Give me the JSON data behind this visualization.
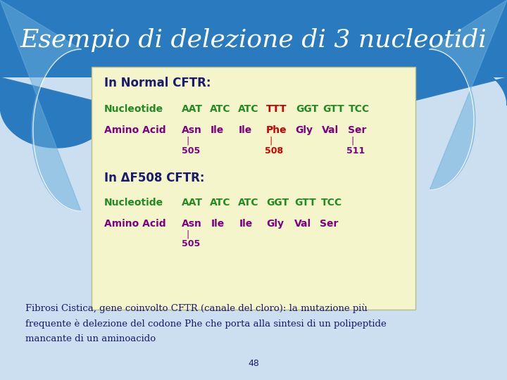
{
  "title": "Esempio di delezione di 3 nucleotidi",
  "title_color": "white",
  "title_fontsize": 26,
  "bg_top_color": "#2a7abf",
  "bg_bottom_color": "#ccdff0",
  "box_bg": "#f5f5cc",
  "header_color": "#1a1a6e",
  "green_color": "#228B22",
  "red_color": "#cc0000",
  "purple_color": "#800080",
  "footer_color": "#1a1a6e",
  "wave_color": "#5a9fd4",
  "normal_header": "In Normal CFTR:",
  "delta_header": "In ΔF508 CFTR:",
  "footer_text": "Fibrosi Cistica, gene coinvolto CFTR (canale del cloro): la mutazione più\nfrequente è delezione del codone Phe che porta alla sintesi di un polipeptide\nmancante di un aminoacido",
  "page_number": "48"
}
